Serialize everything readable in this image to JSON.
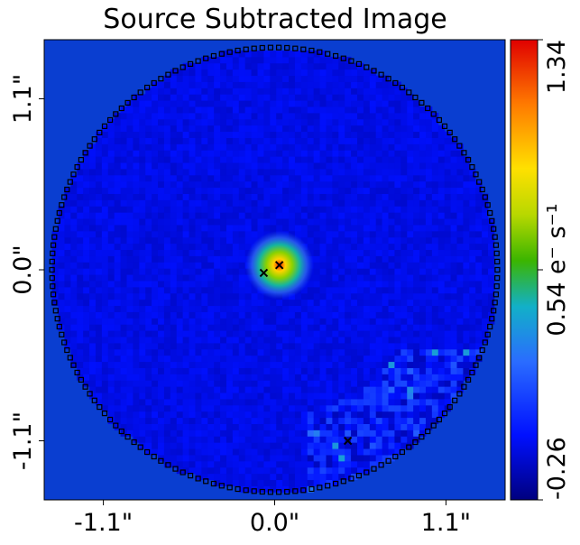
{
  "chart_data": {
    "type": "heatmap",
    "title": "Source Subtracted Image",
    "xlabel": "",
    "ylabel": "",
    "x_ticks": [
      {
        "value": -1.1,
        "label": "-1.1\""
      },
      {
        "value": 0.0,
        "label": "0.0\""
      },
      {
        "value": 1.1,
        "label": "1.1\""
      }
    ],
    "y_ticks": [
      {
        "value": 1.1,
        "label": "1.1\""
      },
      {
        "value": 0.0,
        "label": "0.0\""
      },
      {
        "value": -1.1,
        "label": "-1.1\""
      }
    ],
    "xlim": [
      -1.48,
      1.48
    ],
    "ylim": [
      -1.48,
      1.48
    ],
    "colorbar": {
      "min": -0.26,
      "max": 1.34,
      "ticks": [
        {
          "value": -0.26,
          "label": "-0.26"
        },
        {
          "value": 0.54,
          "label": "0.54 e⁻ s⁻¹"
        },
        {
          "value": 1.34,
          "label": "1.34"
        }
      ],
      "colormap": "jet-like"
    },
    "mask_circle": {
      "center_x": 0.0,
      "center_y": 0.0,
      "radius": 1.43
    },
    "background_value": -0.08,
    "source_peak": {
      "x": 0.03,
      "y": 0.03,
      "value": 1.34
    },
    "noisy_region": {
      "description_value_range": [
        -0.26,
        0.3
      ]
    },
    "markers": [
      {
        "x": 0.03,
        "y": 0.03
      },
      {
        "x": -0.07,
        "y": -0.02
      },
      {
        "x": 0.47,
        "y": -1.1
      }
    ],
    "colors": {
      "background_pixel": "#0a3ed0",
      "mask_outline": "#000000",
      "outside_mask": "#0a3ed0"
    }
  }
}
